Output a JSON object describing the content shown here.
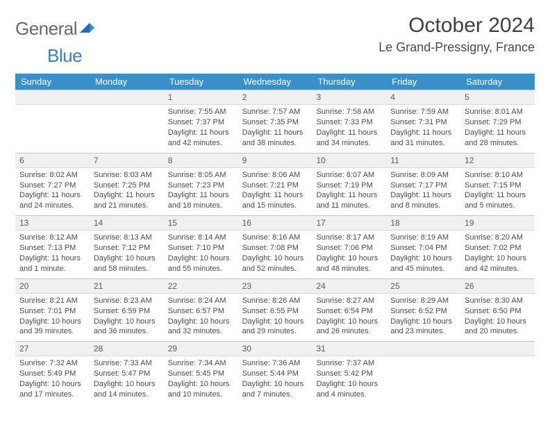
{
  "brand": {
    "text1": "General",
    "text2": "Blue"
  },
  "title": "October 2024",
  "location": "Le Grand-Pressigny, France",
  "colors": {
    "header_bg": "#3b8fc9",
    "header_text": "#ffffff",
    "daynum_bg": "#eef0f1",
    "border": "#bfc5cb",
    "body_text": "#4a4a4a",
    "logo_gray": "#5f6a72",
    "logo_blue": "#3b7fbf"
  },
  "weekdays": [
    "Sunday",
    "Monday",
    "Tuesday",
    "Wednesday",
    "Thursday",
    "Friday",
    "Saturday"
  ],
  "weeks": [
    [
      null,
      null,
      {
        "n": "1",
        "sr": "7:55 AM",
        "ss": "7:37 PM",
        "dl": "11 hours and 42 minutes."
      },
      {
        "n": "2",
        "sr": "7:57 AM",
        "ss": "7:35 PM",
        "dl": "11 hours and 38 minutes."
      },
      {
        "n": "3",
        "sr": "7:58 AM",
        "ss": "7:33 PM",
        "dl": "11 hours and 34 minutes."
      },
      {
        "n": "4",
        "sr": "7:59 AM",
        "ss": "7:31 PM",
        "dl": "11 hours and 31 minutes."
      },
      {
        "n": "5",
        "sr": "8:01 AM",
        "ss": "7:29 PM",
        "dl": "11 hours and 28 minutes."
      }
    ],
    [
      {
        "n": "6",
        "sr": "8:02 AM",
        "ss": "7:27 PM",
        "dl": "11 hours and 24 minutes."
      },
      {
        "n": "7",
        "sr": "8:03 AM",
        "ss": "7:25 PM",
        "dl": "11 hours and 21 minutes."
      },
      {
        "n": "8",
        "sr": "8:05 AM",
        "ss": "7:23 PM",
        "dl": "11 hours and 18 minutes."
      },
      {
        "n": "9",
        "sr": "8:06 AM",
        "ss": "7:21 PM",
        "dl": "11 hours and 15 minutes."
      },
      {
        "n": "10",
        "sr": "8:07 AM",
        "ss": "7:19 PM",
        "dl": "11 hours and 11 minutes."
      },
      {
        "n": "11",
        "sr": "8:09 AM",
        "ss": "7:17 PM",
        "dl": "11 hours and 8 minutes."
      },
      {
        "n": "12",
        "sr": "8:10 AM",
        "ss": "7:15 PM",
        "dl": "11 hours and 5 minutes."
      }
    ],
    [
      {
        "n": "13",
        "sr": "8:12 AM",
        "ss": "7:13 PM",
        "dl": "11 hours and 1 minute."
      },
      {
        "n": "14",
        "sr": "8:13 AM",
        "ss": "7:12 PM",
        "dl": "10 hours and 58 minutes."
      },
      {
        "n": "15",
        "sr": "8:14 AM",
        "ss": "7:10 PM",
        "dl": "10 hours and 55 minutes."
      },
      {
        "n": "16",
        "sr": "8:16 AM",
        "ss": "7:08 PM",
        "dl": "10 hours and 52 minutes."
      },
      {
        "n": "17",
        "sr": "8:17 AM",
        "ss": "7:06 PM",
        "dl": "10 hours and 48 minutes."
      },
      {
        "n": "18",
        "sr": "8:19 AM",
        "ss": "7:04 PM",
        "dl": "10 hours and 45 minutes."
      },
      {
        "n": "19",
        "sr": "8:20 AM",
        "ss": "7:02 PM",
        "dl": "10 hours and 42 minutes."
      }
    ],
    [
      {
        "n": "20",
        "sr": "8:21 AM",
        "ss": "7:01 PM",
        "dl": "10 hours and 39 minutes."
      },
      {
        "n": "21",
        "sr": "8:23 AM",
        "ss": "6:59 PM",
        "dl": "10 hours and 36 minutes."
      },
      {
        "n": "22",
        "sr": "8:24 AM",
        "ss": "6:57 PM",
        "dl": "10 hours and 32 minutes."
      },
      {
        "n": "23",
        "sr": "8:26 AM",
        "ss": "6:55 PM",
        "dl": "10 hours and 29 minutes."
      },
      {
        "n": "24",
        "sr": "8:27 AM",
        "ss": "6:54 PM",
        "dl": "10 hours and 26 minutes."
      },
      {
        "n": "25",
        "sr": "8:29 AM",
        "ss": "6:52 PM",
        "dl": "10 hours and 23 minutes."
      },
      {
        "n": "26",
        "sr": "8:30 AM",
        "ss": "6:50 PM",
        "dl": "10 hours and 20 minutes."
      }
    ],
    [
      {
        "n": "27",
        "sr": "7:32 AM",
        "ss": "5:49 PM",
        "dl": "10 hours and 17 minutes."
      },
      {
        "n": "28",
        "sr": "7:33 AM",
        "ss": "5:47 PM",
        "dl": "10 hours and 14 minutes."
      },
      {
        "n": "29",
        "sr": "7:34 AM",
        "ss": "5:45 PM",
        "dl": "10 hours and 10 minutes."
      },
      {
        "n": "30",
        "sr": "7:36 AM",
        "ss": "5:44 PM",
        "dl": "10 hours and 7 minutes."
      },
      {
        "n": "31",
        "sr": "7:37 AM",
        "ss": "5:42 PM",
        "dl": "10 hours and 4 minutes."
      },
      null,
      null
    ]
  ],
  "labels": {
    "sunrise": "Sunrise: ",
    "sunset": "Sunset: ",
    "daylight": "Daylight: "
  }
}
